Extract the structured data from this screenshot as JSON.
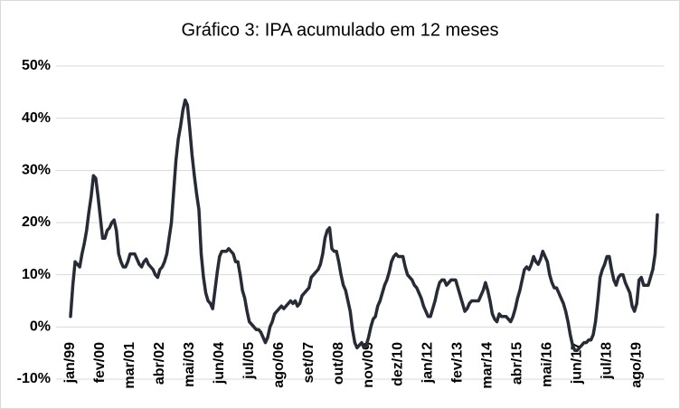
{
  "chart_data": {
    "type": "line",
    "title": "Gráfico 3: IPA acumulado  em 12 meses",
    "categories": [
      "jan/99",
      null,
      null,
      null,
      null,
      null,
      null,
      null,
      null,
      null,
      null,
      null,
      null,
      "fev/00",
      null,
      null,
      null,
      null,
      null,
      null,
      null,
      null,
      null,
      null,
      null,
      null,
      "mar/01",
      null,
      null,
      null,
      null,
      null,
      null,
      null,
      null,
      null,
      null,
      null,
      null,
      "abr/02",
      null,
      null,
      null,
      null,
      null,
      null,
      null,
      null,
      null,
      null,
      null,
      null,
      "mai/03",
      null,
      null,
      null,
      null,
      null,
      null,
      null,
      null,
      null,
      null,
      null,
      null,
      "jun/04",
      null,
      null,
      null,
      null,
      null,
      null,
      null,
      null,
      null,
      null,
      null,
      null,
      "jul/05",
      null,
      null,
      null,
      null,
      null,
      null,
      null,
      null,
      null,
      null,
      null,
      null,
      "ago/06",
      null,
      null,
      null,
      null,
      null,
      null,
      null,
      null,
      null,
      null,
      null,
      null,
      "set/07",
      null,
      null,
      null,
      null,
      null,
      null,
      null,
      null,
      null,
      null,
      null,
      null,
      "out/08",
      null,
      null,
      null,
      null,
      null,
      null,
      null,
      null,
      null,
      null,
      null,
      null,
      "nov/09",
      null,
      null,
      null,
      null,
      null,
      null,
      null,
      null,
      null,
      null,
      null,
      null,
      "dez/10",
      null,
      null,
      null,
      null,
      null,
      null,
      null,
      null,
      null,
      null,
      null,
      null,
      "jan/12",
      null,
      null,
      null,
      null,
      null,
      null,
      null,
      null,
      null,
      null,
      null,
      null,
      "fev/13",
      null,
      null,
      null,
      null,
      null,
      null,
      null,
      null,
      null,
      null,
      null,
      null,
      "mar/14",
      null,
      null,
      null,
      null,
      null,
      null,
      null,
      null,
      null,
      null,
      null,
      null,
      "abr/15",
      null,
      null,
      null,
      null,
      null,
      null,
      null,
      null,
      null,
      null,
      null,
      null,
      "mai/16",
      null,
      null,
      null,
      null,
      null,
      null,
      null,
      null,
      null,
      null,
      null,
      null,
      "jun/17",
      null,
      null,
      null,
      null,
      null,
      null,
      null,
      null,
      null,
      null,
      null,
      null,
      "jul/18",
      null,
      null,
      null,
      null,
      null,
      null,
      null,
      null,
      null,
      null,
      null,
      null,
      "ago/19",
      null,
      null,
      null,
      null,
      null,
      null,
      null,
      null,
      null
    ],
    "values": [
      2,
      8,
      12.5,
      12,
      11.5,
      14,
      16,
      18.5,
      22,
      25,
      29,
      28.5,
      25,
      21,
      17,
      17,
      18.5,
      19,
      20,
      20.5,
      18.5,
      14,
      12.5,
      11.5,
      11.5,
      12.5,
      14,
      14,
      14,
      13,
      12,
      11.5,
      12.5,
      13,
      12,
      11.5,
      11,
      10,
      9.5,
      11,
      11.5,
      12.5,
      14,
      17,
      20,
      26,
      32,
      36,
      38.5,
      41.5,
      43.5,
      42.5,
      38,
      33,
      29,
      25.5,
      22.5,
      14,
      9.5,
      6.5,
      5,
      4.5,
      3.5,
      7,
      10.5,
      13.5,
      14.5,
      14.5,
      14.5,
      15,
      14.5,
      14,
      12.5,
      12.5,
      10,
      7,
      5.5,
      3,
      1,
      0.5,
      0,
      -0.5,
      -0.5,
      -1,
      -2,
      -3,
      -2,
      0,
      1,
      2.5,
      3,
      3.5,
      4,
      3.5,
      4,
      4.5,
      5,
      4.5,
      5,
      4,
      4.5,
      6,
      6.5,
      7,
      7.5,
      9.5,
      10,
      10.5,
      11,
      12,
      14,
      17,
      18.5,
      19,
      15,
      14.5,
      14.5,
      12.5,
      10,
      8,
      7,
      5,
      3,
      -0.5,
      -3,
      -4,
      -3.5,
      -3,
      -4,
      -3.5,
      -2,
      0,
      1.5,
      2,
      4,
      5,
      6.5,
      8,
      9,
      10.5,
      12.5,
      13.5,
      14,
      13.5,
      13.5,
      13.5,
      11.5,
      10,
      9.5,
      9,
      8,
      7.5,
      6.5,
      5.5,
      4,
      3,
      2,
      2,
      3.5,
      5,
      7,
      8.5,
      9,
      9,
      8,
      8.5,
      9,
      9,
      9,
      7.5,
      6,
      4.5,
      3,
      3.5,
      4.5,
      5,
      5,
      5,
      5,
      6,
      7,
      8.5,
      7,
      5,
      2.5,
      1.5,
      1,
      2.5,
      2,
      2,
      2,
      1.5,
      1,
      2,
      3.5,
      5.5,
      7,
      9,
      11,
      11.5,
      11,
      12,
      13.5,
      12.5,
      12,
      13,
      14.5,
      13.5,
      12.5,
      10,
      8.5,
      7.5,
      7.5,
      6.5,
      5.5,
      4.5,
      3,
      1,
      -1.5,
      -3.5,
      -4.5,
      -4.5,
      -4,
      -3.5,
      -3,
      -3,
      -2.5,
      -2.5,
      -1.5,
      1,
      5,
      9.5,
      11,
      12,
      13.5,
      13.5,
      11,
      9,
      8,
      9.5,
      10,
      10,
      8.5,
      7.5,
      6.5,
      4,
      3,
      4.5,
      9,
      9.5,
      8,
      8,
      8,
      9.5,
      11,
      14,
      21.5
    ],
    "color": "#262b36",
    "ylim": [
      -10,
      50
    ],
    "yticks": [
      {
        "value": -10,
        "label": "-10%"
      },
      {
        "value": 0,
        "label": "0%"
      },
      {
        "value": 10,
        "label": "10%"
      },
      {
        "value": 20,
        "label": "20%"
      },
      {
        "value": 30,
        "label": "30%"
      },
      {
        "value": 40,
        "label": "40%"
      },
      {
        "value": 50,
        "label": "50%"
      }
    ],
    "grid": true
  }
}
